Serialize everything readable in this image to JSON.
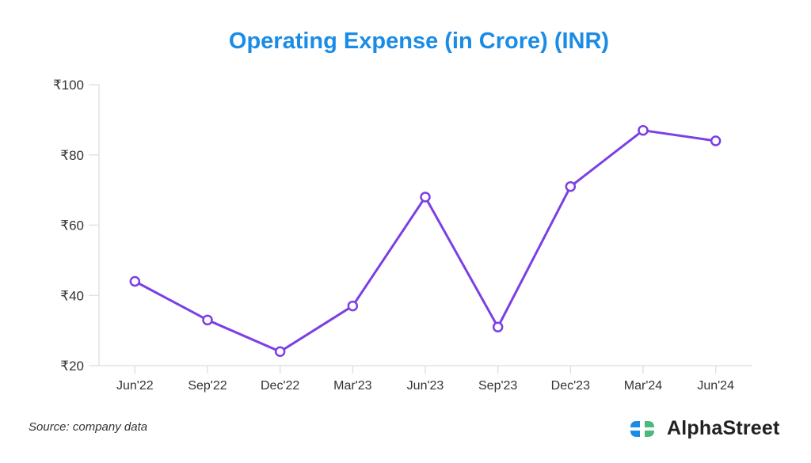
{
  "chart_data": {
    "type": "line",
    "title": "Operating Expense (in Crore) (INR)",
    "xlabel": "",
    "ylabel": "",
    "categories": [
      "Jun'22",
      "Sep'22",
      "Dec'22",
      "Mar'23",
      "Jun'23",
      "Sep'23",
      "Dec'23",
      "Mar'24",
      "Jun'24"
    ],
    "series": [
      {
        "name": "Operating Expense",
        "values": [
          44,
          33,
          24,
          37,
          68,
          31,
          71,
          87,
          84
        ],
        "color": "#7b3fe4"
      }
    ],
    "ylim": [
      20,
      100
    ],
    "yticks": [
      20,
      40,
      60,
      80,
      100
    ],
    "ytick_prefix": "₹",
    "grid": false,
    "legend": "none"
  },
  "footer": {
    "source": "Source: company data",
    "brand": "AlphaStreet"
  },
  "colors": {
    "title": "#1a8ce6",
    "line": "#7b3fe4",
    "logo_blue": "#1a8ce6",
    "logo_green": "#4cb87a"
  }
}
